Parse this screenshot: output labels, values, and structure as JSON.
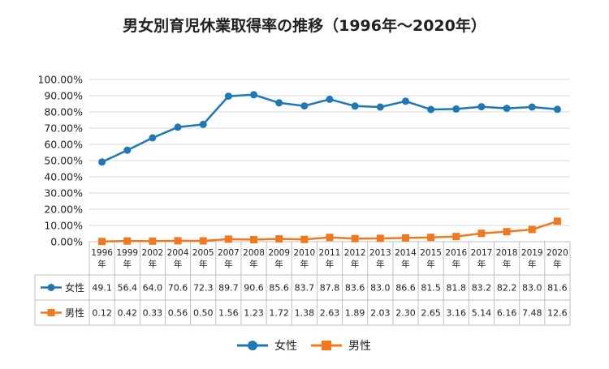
{
  "colors": {
    "female": "#1f77b4",
    "male": "#f0781e",
    "grid": "#d9d9d9",
    "axis": "#bfbfbf"
  },
  "chart_data": {
    "type": "line",
    "title": "男女別育児休業取得率の推移（1996年～2020年）",
    "categories": [
      "1996年",
      "1999年",
      "2002年",
      "2004年",
      "2005年",
      "2007年",
      "2008年",
      "2009年",
      "2010年",
      "2011年",
      "2012年",
      "2013年",
      "2014年",
      "2015年",
      "2016年",
      "2017年",
      "2018年",
      "2019年",
      "2020年"
    ],
    "series": [
      {
        "name": "女性",
        "values": [
          49.1,
          56.4,
          64.0,
          70.6,
          72.3,
          89.7,
          90.6,
          85.6,
          83.7,
          87.8,
          83.6,
          83.0,
          86.6,
          81.5,
          81.8,
          83.2,
          82.2,
          83.0,
          81.6
        ],
        "labels": [
          "49.1",
          "56.4",
          "64.0",
          "70.6",
          "72.3",
          "89.7",
          "90.6",
          "85.6",
          "83.7",
          "87.8",
          "83.6",
          "83.0",
          "86.6",
          "81.5",
          "81.8",
          "83.2",
          "82.2",
          "83.0",
          "81.6"
        ]
      },
      {
        "name": "男性",
        "values": [
          0.12,
          0.42,
          0.33,
          0.56,
          0.5,
          1.56,
          1.23,
          1.72,
          1.38,
          2.63,
          1.89,
          2.03,
          2.3,
          2.65,
          3.16,
          5.14,
          6.16,
          7.48,
          12.6
        ],
        "labels": [
          "0.12",
          "0.42",
          "0.33",
          "0.56",
          "0.50",
          "1.56",
          "1.23",
          "1.72",
          "1.38",
          "2.63",
          "1.89",
          "2.03",
          "2.30",
          "2.65",
          "3.16",
          "5.14",
          "6.16",
          "7.48",
          "12.6"
        ]
      }
    ],
    "ylim": [
      0,
      100
    ],
    "yticks": [
      "0.00%",
      "10.00%",
      "20.00%",
      "30.00%",
      "40.00%",
      "50.00%",
      "60.00%",
      "70.00%",
      "80.00%",
      "90.00%",
      "100.00%"
    ],
    "grid": true,
    "legend": "bottom",
    "data_table": true
  }
}
